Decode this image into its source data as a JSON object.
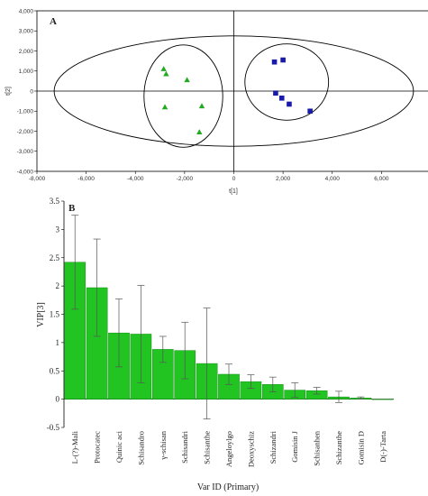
{
  "chart_data": [
    {
      "type": "scatter",
      "panel_label": "A",
      "xlabel": "t[1]",
      "ylabel": "t[2]",
      "xlim": [
        -8000,
        8000
      ],
      "ylim": [
        -4000,
        4000
      ],
      "xticks": [
        "-8,000",
        "-6,000",
        "-4,000",
        "-2,000",
        "0",
        "2,000",
        "4,000",
        "6,000"
      ],
      "xtick_values": [
        -8000,
        -6000,
        -4000,
        -2000,
        0,
        2000,
        4000,
        6000
      ],
      "yticks": [
        "4,000",
        "3,000",
        "2,000",
        "1,000",
        "0",
        "-1,000",
        "-2,000",
        "-3,000",
        "-4,000"
      ],
      "ytick_values": [
        4000,
        3000,
        2000,
        1000,
        0,
        -1000,
        -2000,
        -3000,
        -4000
      ],
      "hotelling_ellipse": {
        "cx": 0,
        "cy": 0,
        "rx": 7300,
        "ry": 2750
      },
      "group_ellipses": [
        {
          "cx": -2050,
          "cy": -250,
          "rx": 1600,
          "ry": 2550
        },
        {
          "cx": 2150,
          "cy": 450,
          "rx": 1700,
          "ry": 1900
        }
      ],
      "series": [
        {
          "marker": "triangle",
          "color": "#22aa22",
          "points": [
            {
              "x": -2850,
              "y": 1100
            },
            {
              "x": -2750,
              "y": 850
            },
            {
              "x": -1900,
              "y": 550
            },
            {
              "x": -2800,
              "y": -800
            },
            {
              "x": -1300,
              "y": -750
            },
            {
              "x": -1400,
              "y": -2050
            }
          ]
        },
        {
          "marker": "square",
          "color": "#1a1aaa",
          "points": [
            {
              "x": 1650,
              "y": 1450
            },
            {
              "x": 2000,
              "y": 1550
            },
            {
              "x": 1700,
              "y": -100
            },
            {
              "x": 1950,
              "y": -350
            },
            {
              "x": 2250,
              "y": -650
            },
            {
              "x": 3100,
              "y": -1000
            }
          ]
        }
      ]
    },
    {
      "type": "bar",
      "panel_label": "B",
      "xlabel": "Var ID (Primary)",
      "ylabel": "VIP[3]",
      "ylim": [
        -0.5,
        3.5
      ],
      "yticks": [
        "3.5",
        "3",
        "2.5",
        "2",
        "1.5",
        "1",
        "0.5",
        "0",
        "-0.5"
      ],
      "ytick_values": [
        3.5,
        3,
        2.5,
        2,
        1.5,
        1,
        0.5,
        0,
        -0.5
      ],
      "bar_color": "#22c422",
      "categories": [
        "L-(?)-Mali",
        "Protocatec",
        "Quinic aci",
        "Schisandro",
        "γ-schisan",
        "Schisandri",
        "Schisanthe",
        "Angeloylgo",
        "Deoxyschiz",
        "Schizandri",
        "Gomisin J",
        "Schisanhen",
        "Schizanthe",
        "Gomisin D",
        "D(-)-Tarta"
      ],
      "values": [
        2.42,
        1.97,
        1.17,
        1.15,
        0.88,
        0.86,
        0.63,
        0.44,
        0.31,
        0.26,
        0.16,
        0.15,
        0.04,
        0.02,
        0.0
      ],
      "error": [
        0.83,
        0.86,
        0.6,
        0.86,
        0.23,
        0.5,
        0.98,
        0.18,
        0.12,
        0.13,
        0.13,
        0.06,
        0.1,
        0.02,
        0.0
      ]
    }
  ]
}
